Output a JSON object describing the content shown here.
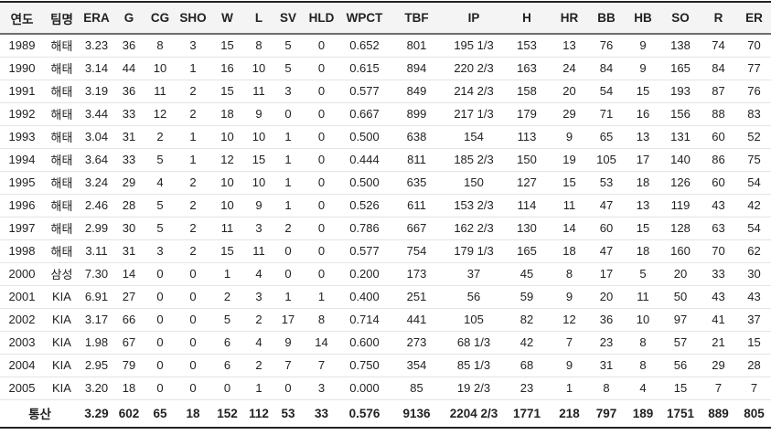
{
  "chart_data": {
    "type": "table",
    "title": "pitcher-career-stats",
    "columns": [
      "연도",
      "팀명",
      "ERA",
      "G",
      "CG",
      "SHO",
      "W",
      "L",
      "SV",
      "HLD",
      "WPCT",
      "TBF",
      "IP",
      "H",
      "HR",
      "BB",
      "HB",
      "SO",
      "R",
      "ER"
    ],
    "rows": [
      [
        "1989",
        "해태",
        "3.23",
        "36",
        "8",
        "3",
        "15",
        "8",
        "5",
        "0",
        "0.652",
        "801",
        "195 1/3",
        "153",
        "13",
        "76",
        "9",
        "138",
        "74",
        "70"
      ],
      [
        "1990",
        "해태",
        "3.14",
        "44",
        "10",
        "1",
        "16",
        "10",
        "5",
        "0",
        "0.615",
        "894",
        "220 2/3",
        "163",
        "24",
        "84",
        "9",
        "165",
        "84",
        "77"
      ],
      [
        "1991",
        "해태",
        "3.19",
        "36",
        "11",
        "2",
        "15",
        "11",
        "3",
        "0",
        "0.577",
        "849",
        "214 2/3",
        "158",
        "20",
        "54",
        "15",
        "193",
        "87",
        "76"
      ],
      [
        "1992",
        "해태",
        "3.44",
        "33",
        "12",
        "2",
        "18",
        "9",
        "0",
        "0",
        "0.667",
        "899",
        "217 1/3",
        "179",
        "29",
        "71",
        "16",
        "156",
        "88",
        "83"
      ],
      [
        "1993",
        "해태",
        "3.04",
        "31",
        "2",
        "1",
        "10",
        "10",
        "1",
        "0",
        "0.500",
        "638",
        "154",
        "113",
        "9",
        "65",
        "13",
        "131",
        "60",
        "52"
      ],
      [
        "1994",
        "해태",
        "3.64",
        "33",
        "5",
        "1",
        "12",
        "15",
        "1",
        "0",
        "0.444",
        "811",
        "185 2/3",
        "150",
        "19",
        "105",
        "17",
        "140",
        "86",
        "75"
      ],
      [
        "1995",
        "해태",
        "3.24",
        "29",
        "4",
        "2",
        "10",
        "10",
        "1",
        "0",
        "0.500",
        "635",
        "150",
        "127",
        "15",
        "53",
        "18",
        "126",
        "60",
        "54"
      ],
      [
        "1996",
        "해태",
        "2.46",
        "28",
        "5",
        "2",
        "10",
        "9",
        "1",
        "0",
        "0.526",
        "611",
        "153 2/3",
        "114",
        "11",
        "47",
        "13",
        "119",
        "43",
        "42"
      ],
      [
        "1997",
        "해태",
        "2.99",
        "30",
        "5",
        "2",
        "11",
        "3",
        "2",
        "0",
        "0.786",
        "667",
        "162 2/3",
        "130",
        "14",
        "60",
        "15",
        "128",
        "63",
        "54"
      ],
      [
        "1998",
        "해태",
        "3.11",
        "31",
        "3",
        "2",
        "15",
        "11",
        "0",
        "0",
        "0.577",
        "754",
        "179 1/3",
        "165",
        "18",
        "47",
        "18",
        "160",
        "70",
        "62"
      ],
      [
        "2000",
        "삼성",
        "7.30",
        "14",
        "0",
        "0",
        "1",
        "4",
        "0",
        "0",
        "0.200",
        "173",
        "37",
        "45",
        "8",
        "17",
        "5",
        "20",
        "33",
        "30"
      ],
      [
        "2001",
        "KIA",
        "6.91",
        "27",
        "0",
        "0",
        "2",
        "3",
        "1",
        "1",
        "0.400",
        "251",
        "56",
        "59",
        "9",
        "20",
        "11",
        "50",
        "43",
        "43"
      ],
      [
        "2002",
        "KIA",
        "3.17",
        "66",
        "0",
        "0",
        "5",
        "2",
        "17",
        "8",
        "0.714",
        "441",
        "105",
        "82",
        "12",
        "36",
        "10",
        "97",
        "41",
        "37"
      ],
      [
        "2003",
        "KIA",
        "1.98",
        "67",
        "0",
        "0",
        "6",
        "4",
        "9",
        "14",
        "0.600",
        "273",
        "68 1/3",
        "42",
        "7",
        "23",
        "8",
        "57",
        "21",
        "15"
      ],
      [
        "2004",
        "KIA",
        "2.95",
        "79",
        "0",
        "0",
        "6",
        "2",
        "7",
        "7",
        "0.750",
        "354",
        "85 1/3",
        "68",
        "9",
        "31",
        "8",
        "56",
        "29",
        "28"
      ],
      [
        "2005",
        "KIA",
        "3.20",
        "18",
        "0",
        "0",
        "0",
        "1",
        "0",
        "3",
        "0.000",
        "85",
        "19 2/3",
        "23",
        "1",
        "8",
        "4",
        "15",
        "7",
        "7"
      ]
    ],
    "total_row": {
      "label": "통산",
      "values": [
        "3.29",
        "602",
        "65",
        "18",
        "152",
        "112",
        "53",
        "33",
        "0.576",
        "9136",
        "2204 2/3",
        "1771",
        "218",
        "797",
        "189",
        "1751",
        "889",
        "805"
      ]
    }
  },
  "colors": {
    "top_bottom_border": "#222222",
    "header_background": "#f4f4f4",
    "header_underline": "#6e6e6e",
    "row_separator": "#e4e4e4",
    "text": "#222222"
  }
}
